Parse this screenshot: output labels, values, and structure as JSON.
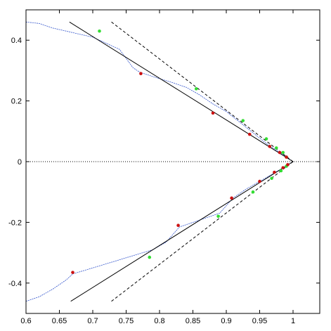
{
  "chart_data": {
    "type": "line",
    "xlim": [
      0.6,
      1.04
    ],
    "ylim": [
      -0.5,
      0.5
    ],
    "xticks": [
      0.6,
      0.65,
      0.7,
      0.75,
      0.8,
      0.85,
      0.9,
      0.95,
      1
    ],
    "yticks": [
      -0.4,
      -0.2,
      0,
      0.2,
      0.4
    ],
    "series": [
      {
        "style": "dotted",
        "color": "#000000",
        "x": [
          0.6,
          1.04
        ],
        "values": [
          0,
          0
        ]
      },
      {
        "style": "blue-steps",
        "color": "#3355cc",
        "x": [
          0.6,
          0.62,
          0.64,
          0.66,
          0.68,
          0.7,
          0.72,
          0.74,
          0.75,
          0.76,
          0.77,
          0.79,
          0.82,
          0.84,
          0.86,
          0.88,
          0.9,
          0.92,
          0.94,
          0.96,
          0.98,
          1
        ],
        "values": [
          0.46,
          0.455,
          0.44,
          0.43,
          0.42,
          0.41,
          0.39,
          0.37,
          0.34,
          0.31,
          0.295,
          0.28,
          0.26,
          0.245,
          0.22,
          0.19,
          0.165,
          0.13,
          0.095,
          0.06,
          0.03,
          0
        ]
      },
      {
        "style": "blue-steps",
        "color": "#3355cc",
        "x": [
          0.6,
          0.62,
          0.64,
          0.66,
          0.67,
          0.7,
          0.73,
          0.76,
          0.79,
          0.81,
          0.83,
          0.85,
          0.87,
          0.89,
          0.91,
          0.93,
          0.95,
          0.97,
          1
        ],
        "values": [
          -0.46,
          -0.445,
          -0.42,
          -0.39,
          -0.37,
          -0.35,
          -0.33,
          -0.31,
          -0.29,
          -0.265,
          -0.215,
          -0.2,
          -0.185,
          -0.17,
          -0.12,
          -0.09,
          -0.065,
          -0.04,
          0
        ]
      },
      {
        "style": "solid",
        "color": "#000000",
        "x": [
          0.665,
          1
        ],
        "values": [
          0.46,
          0
        ]
      },
      {
        "style": "solid",
        "color": "#000000",
        "x": [
          0.667,
          1
        ],
        "values": [
          -0.46,
          0
        ]
      },
      {
        "style": "dashed",
        "color": "#000000",
        "x": [
          0.728,
          1
        ],
        "values": [
          0.46,
          0
        ]
      },
      {
        "style": "dashed",
        "color": "#000000",
        "x": [
          0.728,
          1
        ],
        "values": [
          -0.46,
          0
        ]
      },
      {
        "style": "markers",
        "color": "#33dd33",
        "x": [
          0.71,
          0.855,
          0.925,
          0.96,
          0.975,
          0.985,
          0.99,
          0.785,
          0.888,
          0.94,
          0.968,
          0.982,
          0.99
        ],
        "values": [
          0.43,
          0.24,
          0.135,
          0.075,
          0.045,
          0.03,
          0.015,
          -0.315,
          -0.18,
          -0.1,
          -0.055,
          -0.03,
          -0.015
        ]
      },
      {
        "style": "markers",
        "color": "#cc1111",
        "x": [
          0.772,
          0.88,
          0.935,
          0.965,
          0.98,
          0.99,
          0.67,
          0.828,
          0.908,
          0.95,
          0.972,
          0.985,
          0.992
        ],
        "values": [
          0.29,
          0.16,
          0.09,
          0.05,
          0.03,
          0.015,
          -0.365,
          -0.21,
          -0.12,
          -0.065,
          -0.035,
          -0.02,
          -0.01
        ]
      }
    ]
  }
}
